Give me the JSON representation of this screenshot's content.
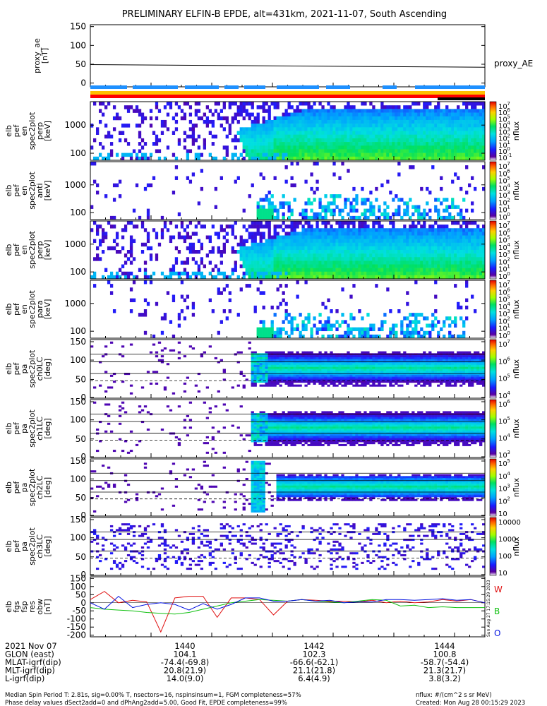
{
  "title": "PRELIMINARY ELFIN-B EPDE, alt=431km, 2021-11-07, South Ascending",
  "colors": {
    "red": "#e01010",
    "green": "#10c010",
    "blue": "#0010e0",
    "bar_blue": "#1e90ff",
    "bar_yellow": "#ffc000",
    "bar_red": "#ff0000"
  },
  "chart_data": [
    {
      "type": "line",
      "panel": "proxy_ae",
      "ylabel": [
        "proxy_ae",
        "[nT]"
      ],
      "yticks": [
        "150",
        "100",
        "50",
        "0"
      ],
      "ylim": [
        -10,
        155
      ],
      "x": [
        0,
        1
      ],
      "values": [
        49,
        42
      ],
      "legend": "proxy_AE"
    },
    {
      "type": "heatmap",
      "panel": "energy-spectrogram-1",
      "ylabel": [
        "elb",
        "pef",
        "en",
        "spec2plot",
        "perp",
        "[keV]"
      ],
      "yticks": [
        "1000",
        "100"
      ],
      "zlabel": "nflux",
      "zticks": [
        "10",
        "10",
        "10",
        "10",
        "10",
        "10",
        "10",
        "10",
        "10"
      ],
      "zexp": [
        "7",
        "6",
        "5",
        "4",
        "3",
        "2",
        "1",
        "0",
        "-1"
      ],
      "profile": "energy-full"
    },
    {
      "type": "heatmap",
      "panel": "energy-spectrogram-2",
      "ylabel": [
        "elb",
        "pef",
        "en",
        "spec2plot",
        "anti",
        "[keV]"
      ],
      "yticks": [
        "1000",
        "100"
      ],
      "zlabel": "nflux",
      "zticks": [
        "10",
        "10",
        "10",
        "10",
        "10",
        "10",
        "10",
        "10"
      ],
      "zexp": [
        "7",
        "6",
        "5",
        "4",
        "3",
        "2",
        "1",
        "0"
      ],
      "profile": "energy-sparse"
    },
    {
      "type": "heatmap",
      "panel": "energy-spectrogram-3",
      "ylabel": [
        "elb",
        "pef",
        "en",
        "spec2plot",
        "perp",
        "[keV]"
      ],
      "yticks": [
        "1000",
        "100"
      ],
      "zlabel": "nflux",
      "zticks": [
        "10",
        "10",
        "10",
        "10",
        "10",
        "10",
        "10",
        "10"
      ],
      "zexp": [
        "7",
        "6",
        "5",
        "4",
        "3",
        "2",
        "1",
        "0"
      ],
      "profile": "energy-full"
    },
    {
      "type": "heatmap",
      "panel": "energy-spectrogram-4",
      "ylabel": [
        "elb",
        "pef",
        "en",
        "spec2plot",
        "para",
        "[keV]"
      ],
      "yticks": [
        "1000",
        "100"
      ],
      "zlabel": "nflux",
      "zticks": [
        "10",
        "10",
        "10",
        "10",
        "10",
        "10",
        "10",
        "10"
      ],
      "zexp": [
        "7",
        "6",
        "5",
        "4",
        "3",
        "2",
        "1",
        "0"
      ],
      "profile": "energy-sparse"
    },
    {
      "type": "heatmap",
      "panel": "pitch-angle-ch0",
      "ylabel": [
        "elb",
        "pef",
        "pa",
        "spec2plot",
        "ch0LC",
        "[deg]"
      ],
      "yticks": [
        "150",
        "100",
        "50",
        "0"
      ],
      "zlabel": "nflux",
      "zticks": [
        "10",
        "10",
        "10",
        "10"
      ],
      "zexp": [
        "7",
        "6",
        "5",
        "4"
      ],
      "profile": "pa-strong"
    },
    {
      "type": "heatmap",
      "panel": "pitch-angle-ch1",
      "ylabel": [
        "elb",
        "pef",
        "pa",
        "spec2plot",
        "ch1LC",
        "[deg]"
      ],
      "yticks": [
        "150",
        "100",
        "50",
        "0"
      ],
      "zlabel": "nflux",
      "zticks": [
        "10",
        "10",
        "10",
        "10"
      ],
      "zexp": [
        "6",
        "5",
        "4",
        "3"
      ],
      "profile": "pa-strong"
    },
    {
      "type": "heatmap",
      "panel": "pitch-angle-ch2",
      "ylabel": [
        "elb",
        "pef",
        "pa",
        "spec2plot",
        "ch2LC",
        "[deg]"
      ],
      "yticks": [
        "150",
        "100",
        "50",
        "0"
      ],
      "zlabel": "nflux",
      "zticks": [
        "10",
        "10",
        "10",
        "10",
        "10"
      ],
      "zexp": [
        "5",
        "4",
        "3",
        "2",
        ""
      ],
      "profile": "pa-medium"
    },
    {
      "type": "heatmap",
      "panel": "pitch-angle-ch3",
      "ylabel": [
        "elb",
        "pef",
        "pa",
        "spec2plot",
        "ch3LC",
        "[deg]"
      ],
      "yticks": [
        "150",
        "100",
        "50",
        "0"
      ],
      "zlabel": "nflux",
      "zticks": [
        "10000",
        "1000",
        "100",
        "10"
      ],
      "zexp": [
        "",
        "",
        "",
        ""
      ],
      "profile": "pa-sparse"
    },
    {
      "type": "line",
      "panel": "fgs-residual",
      "ylabel": [
        "elb",
        "fgs",
        "fsp",
        "res",
        "obw",
        "[nT]"
      ],
      "yticks": [
        "150",
        "100",
        "50",
        "0",
        "-50",
        "-100",
        "-150",
        "-200"
      ],
      "ylim": [
        -210,
        160
      ],
      "legend": [
        "W",
        "B",
        "O"
      ],
      "series": [
        {
          "name": "W",
          "color": "red",
          "values": [
            20,
            70,
            0,
            15,
            5,
            -180,
            30,
            40,
            40,
            -90,
            30,
            30,
            20,
            -75,
            10,
            20,
            15,
            10,
            10,
            5,
            15,
            0,
            10,
            0,
            5,
            20,
            10,
            20,
            0
          ]
        },
        {
          "name": "B",
          "color": "green",
          "values": [
            -30,
            -40,
            -45,
            -50,
            -60,
            -65,
            -70,
            -60,
            -40,
            -20,
            0,
            10,
            20,
            15,
            10,
            20,
            10,
            5,
            0,
            10,
            20,
            15,
            -20,
            -15,
            -30,
            -25,
            -30,
            -30,
            -30
          ]
        },
        {
          "name": "O",
          "color": "blue",
          "values": [
            0,
            -40,
            40,
            -30,
            -10,
            0,
            -10,
            -45,
            -5,
            -40,
            -10,
            30,
            30,
            10,
            10,
            20,
            10,
            15,
            0,
            5,
            5,
            20,
            20,
            15,
            20,
            25,
            15,
            20,
            0
          ]
        }
      ]
    }
  ],
  "footer": {
    "rows": [
      {
        "label": "2021 Nov 07",
        "values": [
          "1440",
          "1442",
          "1444"
        ]
      },
      {
        "label": "GLON (east)",
        "values": [
          "104.1",
          "102.3",
          "100.8"
        ]
      },
      {
        "label": "MLAT-igrf(dip)",
        "values": [
          "-74.4(-69.8)",
          "-66.6(-62.1)",
          "-58.7(-54.4)"
        ]
      },
      {
        "label": "MLT-igrf(dip)",
        "values": [
          "20.8(21.9)",
          "21.1(21.8)",
          "21.3(21.7)"
        ]
      },
      {
        "label": "L-igrf(dip)",
        "values": [
          "14.0(9.0)",
          "6.4(4.9)",
          "3.8(3.2)"
        ]
      }
    ],
    "note_left_1": "Median Spin Period T: 2.81s, sig=0.00% T, nsectors=16, nspinsinsum=1, FGM completeness=57%",
    "note_left_2": "Phase delay values dSect2add=0 and dPhAng2add=5.00, Good Fit, EPDE completeness=99%",
    "note_right_1": "nflux: #/(cm^2 s sr MeV)",
    "note_right_2": "Created: Mon Aug 28 00:15:29 2023",
    "side_stamp": "Sun Aug 27 17:15:29 2023"
  }
}
